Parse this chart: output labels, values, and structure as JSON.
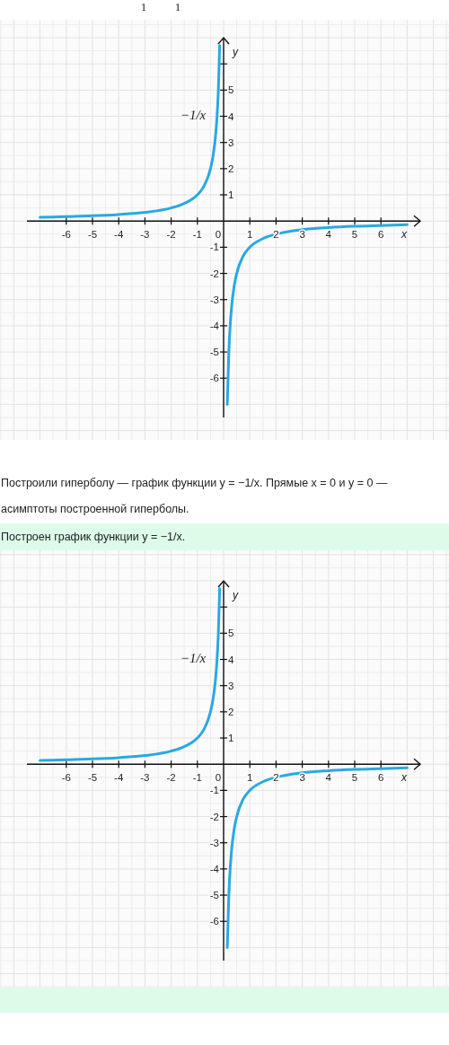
{
  "chart_data": [
    {
      "type": "line",
      "xlabel": "x",
      "y2label": "y",
      "x": [
        -7,
        -6,
        -5,
        -4,
        -3,
        -2,
        -1.5,
        -1,
        -0.75,
        -0.5,
        -0.4,
        -0.3,
        -0.25,
        -0.2,
        -0.15,
        0,
        0.14,
        0.2,
        0.25,
        0.3,
        0.4,
        0.5,
        0.75,
        1,
        1.5,
        2,
        3,
        4,
        5,
        6,
        7
      ],
      "series": [
        {
          "name": "−1/x",
          "color": "#29a9e1",
          "values": [
            0.14,
            0.17,
            0.2,
            0.25,
            0.33,
            0.5,
            0.67,
            1,
            1.33,
            2,
            2.5,
            3.33,
            4,
            5,
            6.7,
            null,
            -7,
            -5,
            -4,
            -3.33,
            -2.5,
            -2,
            -1.33,
            -1,
            -0.67,
            -0.5,
            -0.33,
            -0.25,
            -0.2,
            -0.17,
            -0.14
          ]
        }
      ],
      "xlim": [
        -7.5,
        7.5
      ],
      "ylim": [
        -7.5,
        7
      ],
      "y2lim": [
        -7.5,
        7
      ],
      "xticks": [
        -6,
        -5,
        -4,
        -3,
        -2,
        -1,
        {
          "value": 0,
          "label": "0"
        },
        1,
        2,
        3,
        4,
        5,
        6
      ],
      "yticks": [
        -6,
        -5,
        -4,
        -3,
        -2,
        -1
      ],
      "y2ticks": [
        1,
        2,
        3,
        4,
        5,
        {
          "value": 6,
          "label": null
        }
      ],
      "grid": true,
      "line_style": "solid",
      "annotations": [
        "1",
        "1",
        "Построили гиперболу — график функции y = −1/x. Прямые x = 0 и y = 0 — асимптоты построенной гиперболы."
      ]
    },
    {
      "type": "line",
      "title": "Построен график функции y = −1/x.",
      "xlabel": "x",
      "y2label": "y",
      "x": [
        -7,
        -6,
        -5,
        -4,
        -3,
        -2,
        -1.5,
        -1,
        -0.75,
        -0.5,
        -0.4,
        -0.3,
        -0.25,
        -0.2,
        -0.15,
        0,
        0.14,
        0.2,
        0.25,
        0.3,
        0.4,
        0.5,
        0.75,
        1,
        1.5,
        2,
        3,
        4,
        5,
        6,
        7
      ],
      "series": [
        {
          "name": "−1/x",
          "color": "#29a9e1",
          "values": [
            0.14,
            0.17,
            0.2,
            0.25,
            0.33,
            0.5,
            0.67,
            1,
            1.33,
            2,
            2.5,
            3.33,
            4,
            5,
            6.7,
            null,
            -7,
            -5,
            -4,
            -3.33,
            -2.5,
            -2,
            -1.33,
            -1,
            -0.67,
            -0.5,
            -0.33,
            -0.25,
            -0.2,
            -0.17,
            -0.14
          ]
        }
      ],
      "xlim": [
        -7.5,
        7.5
      ],
      "ylim": [
        -7.5,
        7
      ],
      "y2lim": [
        -7.5,
        7
      ],
      "xticks": [
        -6,
        -5,
        -4,
        -3,
        -2,
        -1,
        {
          "value": 0,
          "label": "0"
        },
        1,
        2,
        3,
        4,
        5,
        6
      ],
      "yticks": [
        -6,
        -5,
        -4,
        -3,
        -2,
        -1
      ],
      "y2ticks": [
        1,
        2,
        3,
        4,
        5,
        {
          "value": 6,
          "label": null
        }
      ],
      "grid": true,
      "line_style": "solid"
    }
  ]
}
